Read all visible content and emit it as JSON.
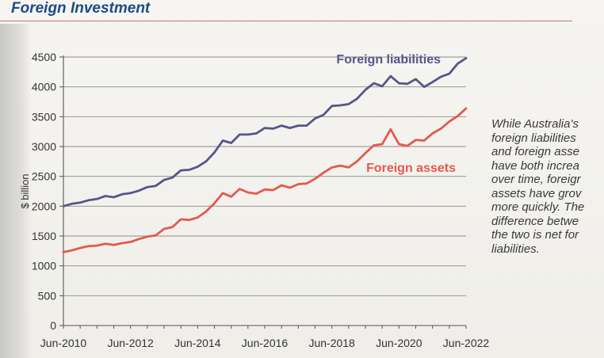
{
  "header": {
    "title": "Foreign Investment"
  },
  "annotation": {
    "lines": [
      "While Australia's",
      "foreign liabilities",
      "and foreign asse",
      "have both increa",
      "over time, foreigr",
      "assets have grov",
      "more quickly. The",
      "difference betwe",
      "the two is net for",
      "liabilities."
    ]
  },
  "chart_data": {
    "type": "line",
    "title": "",
    "xlabel": "",
    "ylabel": "$ billion",
    "ylim": [
      0,
      4500
    ],
    "yticks": [
      0,
      500,
      1000,
      1500,
      2000,
      2500,
      3000,
      3500,
      4000,
      4500
    ],
    "xlim": [
      2010.5,
      2022.5
    ],
    "xticks": [
      {
        "label": "Jun-2010",
        "value": 2010.5
      },
      {
        "label": "Jun-2012",
        "value": 2012.5
      },
      {
        "label": "Jun-2014",
        "value": 2014.5
      },
      {
        "label": "Jun-2016",
        "value": 2016.5
      },
      {
        "label": "Jun-2018",
        "value": 2018.5
      },
      {
        "label": "Jun-2020",
        "value": 2020.5
      },
      {
        "label": "Jun-2022",
        "value": 2022.5
      }
    ],
    "grid": true,
    "x": [
      2010.5,
      2010.75,
      2011.0,
      2011.25,
      2011.5,
      2011.75,
      2012.0,
      2012.25,
      2012.5,
      2012.75,
      2013.0,
      2013.25,
      2013.5,
      2013.75,
      2014.0,
      2014.25,
      2014.5,
      2014.75,
      2015.0,
      2015.25,
      2015.5,
      2015.75,
      2016.0,
      2016.25,
      2016.5,
      2016.75,
      2017.0,
      2017.25,
      2017.5,
      2017.75,
      2018.0,
      2018.25,
      2018.5,
      2018.75,
      2019.0,
      2019.25,
      2019.5,
      2019.75,
      2020.0,
      2020.25,
      2020.5,
      2020.75,
      2021.0,
      2021.25,
      2021.5,
      2021.75,
      2022.0,
      2022.25,
      2022.5
    ],
    "series": [
      {
        "name": "Foreign liabilities",
        "color": "#55568a",
        "values": [
          2000,
          2040,
          2060,
          2100,
          2120,
          2170,
          2150,
          2200,
          2220,
          2260,
          2320,
          2340,
          2440,
          2480,
          2600,
          2610,
          2660,
          2750,
          2900,
          3100,
          3060,
          3200,
          3200,
          3220,
          3310,
          3300,
          3350,
          3310,
          3350,
          3350,
          3470,
          3530,
          3680,
          3690,
          3710,
          3800,
          3950,
          4060,
          4010,
          4180,
          4060,
          4050,
          4130,
          4000,
          4080,
          4170,
          4220,
          4390,
          4480
        ]
      },
      {
        "name": "Foreign assets",
        "color": "#e25a4c",
        "values": [
          1230,
          1260,
          1300,
          1330,
          1340,
          1370,
          1350,
          1380,
          1400,
          1450,
          1490,
          1510,
          1620,
          1650,
          1780,
          1770,
          1810,
          1910,
          2050,
          2220,
          2160,
          2290,
          2230,
          2210,
          2280,
          2270,
          2350,
          2310,
          2370,
          2380,
          2460,
          2560,
          2650,
          2680,
          2650,
          2750,
          2890,
          3020,
          3040,
          3290,
          3040,
          3010,
          3110,
          3100,
          3220,
          3300,
          3420,
          3510,
          3640
        ]
      }
    ],
    "legend": "inline-labels"
  }
}
